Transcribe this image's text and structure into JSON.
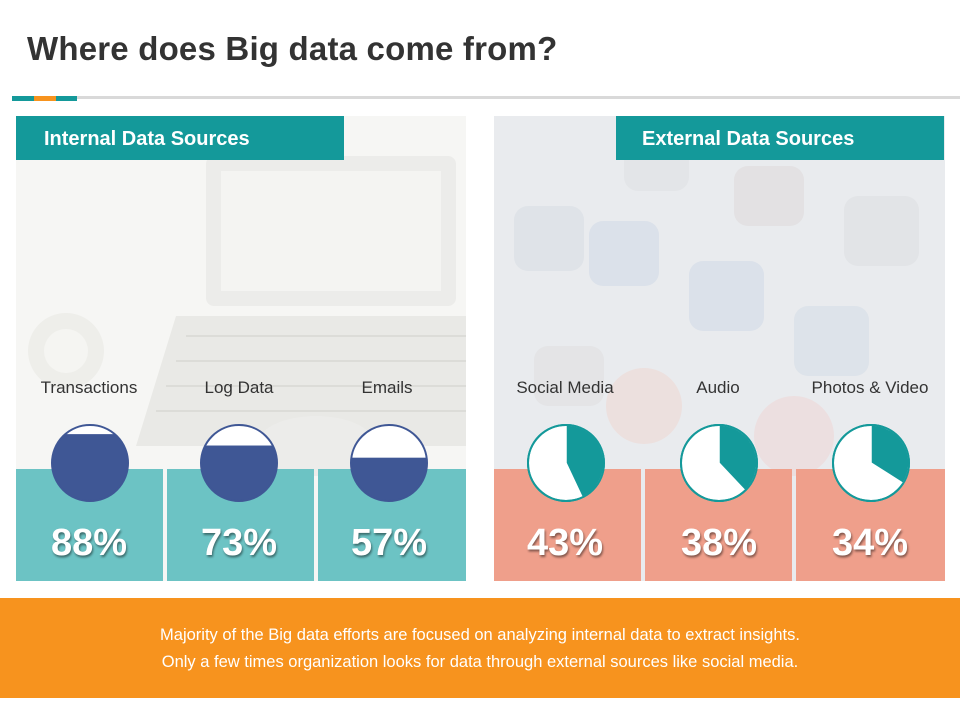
{
  "title": "Where does Big data come from?",
  "colors": {
    "teal": "#14999a",
    "orange": "#f7931e",
    "navy": "#3f5795",
    "internal_box": "#6cc3c4",
    "external_box": "#ef9f8b"
  },
  "internal": {
    "header": "Internal Data Sources"
  },
  "external": {
    "header": "External Data Sources"
  },
  "chart_data": {
    "type": "pie",
    "title": "Where does Big data come from?",
    "series": [
      {
        "name": "Internal Data Sources",
        "categories": [
          "Transactions",
          "Log Data",
          "Emails"
        ],
        "values": [
          88,
          73,
          57
        ],
        "labels": [
          "88%",
          "73%",
          "57%"
        ]
      },
      {
        "name": "External Data Sources",
        "categories": [
          "Social Media",
          "Audio",
          "Photos & Video"
        ],
        "values": [
          43,
          38,
          34
        ],
        "labels": [
          "43%",
          "38%",
          "34%"
        ]
      }
    ]
  },
  "footer": {
    "line1": "Majority of the Big data efforts are focused on analyzing internal data to extract insights.",
    "line2": "Only a few times organization looks for data through external sources like social media."
  }
}
